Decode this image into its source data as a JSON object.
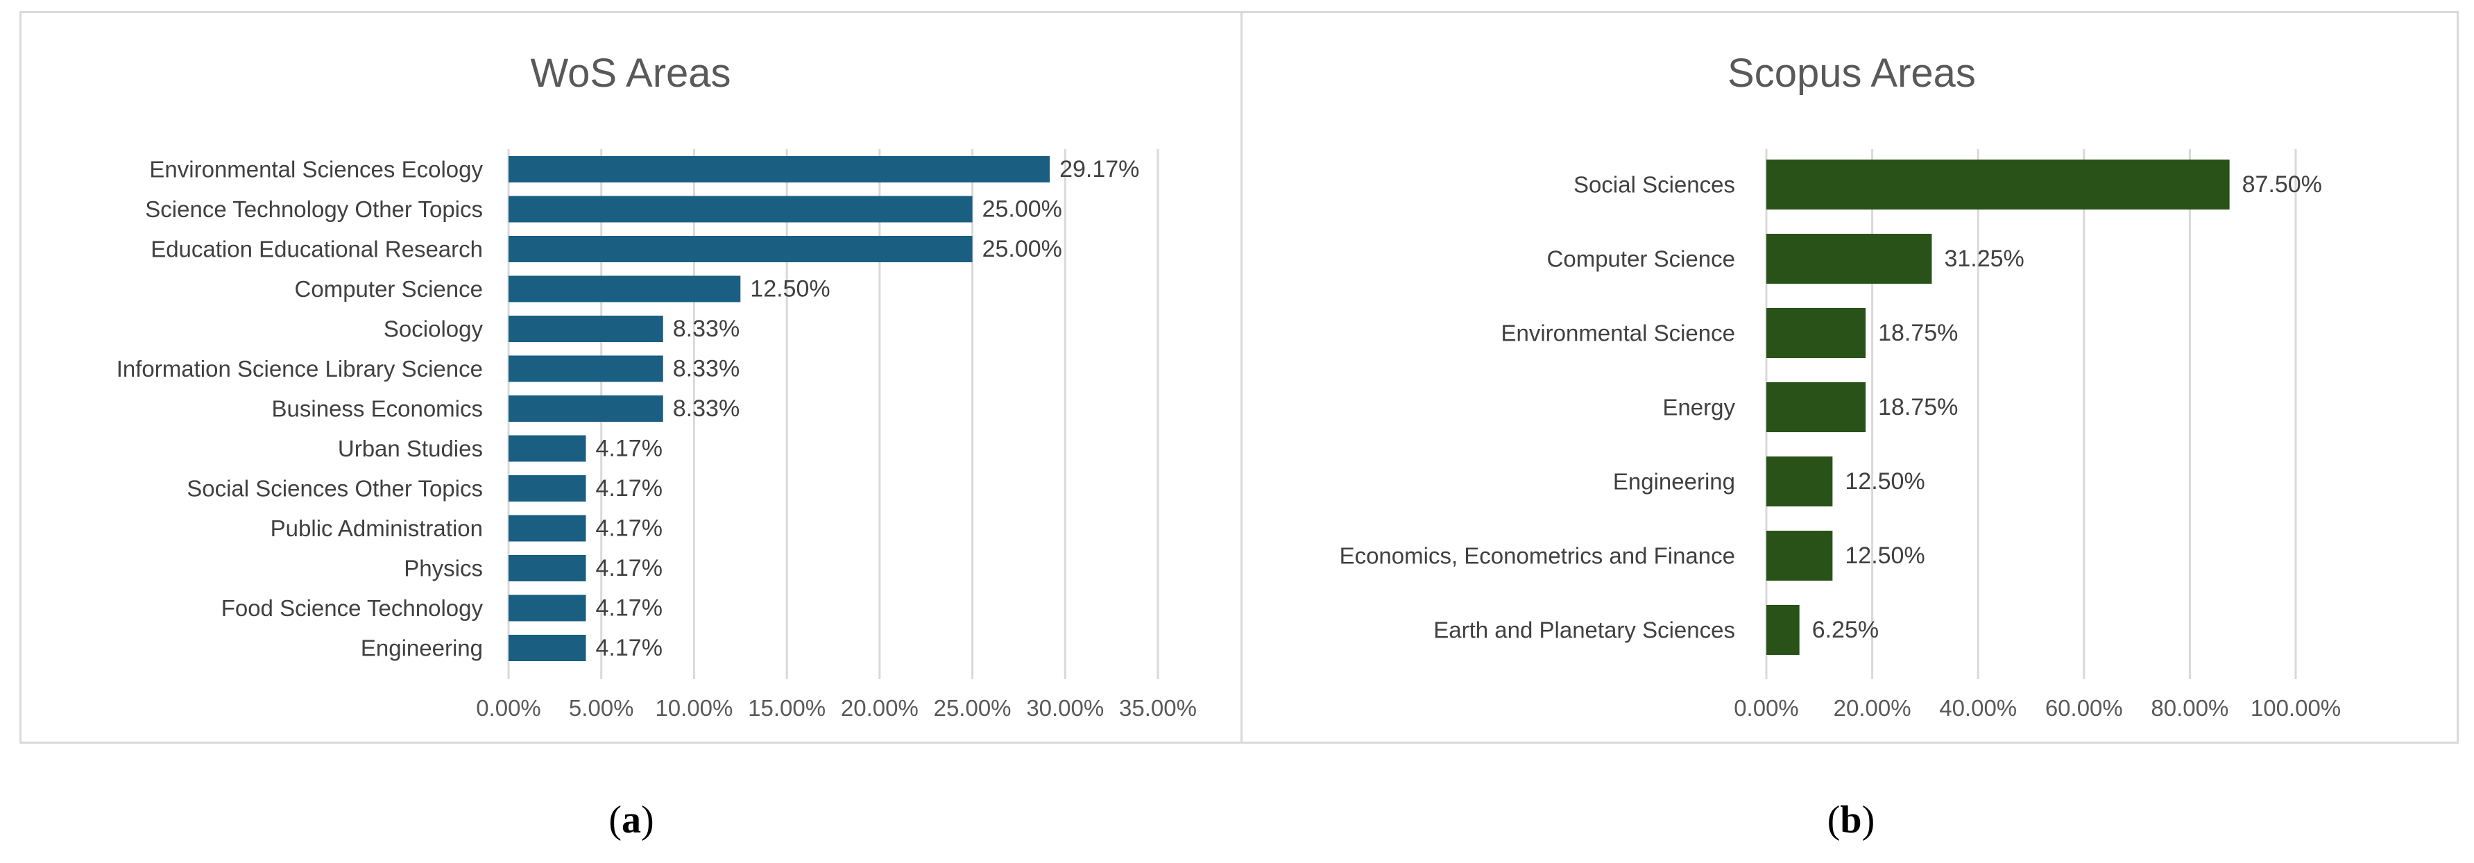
{
  "chart_data": [
    {
      "type": "bar",
      "orientation": "horizontal",
      "title": "WoS Areas",
      "categories": [
        "Environmental Sciences Ecology",
        "Science Technology Other Topics",
        "Education Educational Research",
        "Computer Science",
        "Sociology",
        "Information Science Library Science",
        "Business Economics",
        "Urban Studies",
        "Social Sciences Other Topics",
        "Public Administration",
        "Physics",
        "Food Science Technology",
        "Engineering"
      ],
      "values": [
        29.17,
        25.0,
        25.0,
        12.5,
        8.33,
        8.33,
        8.33,
        4.17,
        4.17,
        4.17,
        4.17,
        4.17,
        4.17
      ],
      "value_labels": [
        "29.17%",
        "25.00%",
        "25.00%",
        "12.50%",
        "8.33%",
        "8.33%",
        "8.33%",
        "4.17%",
        "4.17%",
        "4.17%",
        "4.17%",
        "4.17%",
        "4.17%"
      ],
      "xlim": [
        0,
        35
      ],
      "ticks": [
        0,
        5,
        10,
        15,
        20,
        25,
        30,
        35
      ],
      "tick_labels": [
        "0.00%",
        "5.00%",
        "10.00%",
        "15.00%",
        "20.00%",
        "25.00%",
        "30.00%",
        "35.00%"
      ],
      "xlabel": "",
      "ylabel": "",
      "grid": true,
      "color": "#1a5f82"
    },
    {
      "type": "bar",
      "orientation": "horizontal",
      "title": "Scopus Areas",
      "categories": [
        "Social Sciences",
        "Computer Science",
        "Environmental Science",
        "Energy",
        "Engineering",
        "Economics, Econometrics and Finance",
        "Earth and Planetary Sciences"
      ],
      "values": [
        87.5,
        31.25,
        18.75,
        18.75,
        12.5,
        12.5,
        6.25
      ],
      "value_labels": [
        "87.50%",
        "31.25%",
        "18.75%",
        "18.75%",
        "12.50%",
        "12.50%",
        "6.25%"
      ],
      "xlim": [
        0,
        100
      ],
      "ticks": [
        0,
        20,
        40,
        60,
        80,
        100
      ],
      "tick_labels": [
        "0.00%",
        "20.00%",
        "40.00%",
        "60.00%",
        "80.00%",
        "100.00%"
      ],
      "xlabel": "",
      "ylabel": "",
      "grid": true,
      "color": "#285218"
    }
  ],
  "captions": {
    "a": "a",
    "b": "b"
  }
}
